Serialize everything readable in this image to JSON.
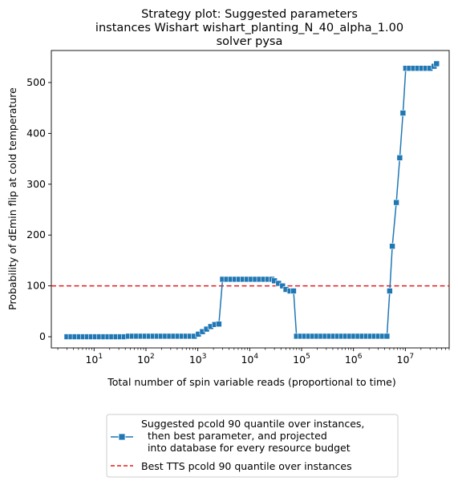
{
  "chart_data": {
    "type": "line",
    "title_lines": [
      "Strategy plot: Suggested parameters",
      "instances Wishart wishart_planting_N_40_alpha_1.00",
      "solver pysa"
    ],
    "xlabel": "Total number of spin variable reads (proportional to time)",
    "ylabel": "Probability of dEmin flip at cold temperature",
    "xscale": "log",
    "xlim": [
      1.5,
      70000000
    ],
    "ylim": [
      -22,
      563
    ],
    "y_ticks": [
      0,
      100,
      200,
      300,
      400,
      500
    ],
    "x_ticks": [
      {
        "value": 10,
        "label": "10",
        "exp": "1"
      },
      {
        "value": 100,
        "label": "10",
        "exp": "2"
      },
      {
        "value": 1000,
        "label": "10",
        "exp": "3"
      },
      {
        "value": 10000,
        "label": "10",
        "exp": "4"
      },
      {
        "value": 100000,
        "label": "10",
        "exp": "5"
      },
      {
        "value": 1000000,
        "label": "10",
        "exp": "6"
      },
      {
        "value": 10000000,
        "label": "10",
        "exp": "7"
      }
    ],
    "grid": false,
    "legend_placement": "below plot",
    "series": [
      {
        "name": "Suggested pcold 90 quantile over instances,\n  then best parameter, and projected\n  into database for every resource budget",
        "color": "#1f77b4",
        "marker": "square",
        "points": [
          [
            3,
            0
          ],
          [
            3.6,
            0
          ],
          [
            4.3,
            0
          ],
          [
            5.2,
            0
          ],
          [
            6.2,
            0
          ],
          [
            7.4,
            0
          ],
          [
            8.9,
            0
          ],
          [
            10.7,
            0
          ],
          [
            12.8,
            0
          ],
          [
            15.4,
            0
          ],
          [
            18.5,
            0
          ],
          [
            22,
            0
          ],
          [
            26.5,
            0
          ],
          [
            32,
            0
          ],
          [
            38,
            0
          ],
          [
            46,
            1
          ],
          [
            55,
            1
          ],
          [
            66,
            1
          ],
          [
            80,
            1
          ],
          [
            96,
            1
          ],
          [
            115,
            1
          ],
          [
            138,
            1
          ],
          [
            165,
            1
          ],
          [
            198,
            1
          ],
          [
            238,
            1
          ],
          [
            286,
            1
          ],
          [
            343,
            1
          ],
          [
            412,
            1
          ],
          [
            494,
            1
          ],
          [
            593,
            1
          ],
          [
            712,
            1
          ],
          [
            854,
            1
          ],
          [
            1025,
            5
          ],
          [
            1230,
            10
          ],
          [
            1476,
            15
          ],
          [
            1771,
            20
          ],
          [
            2125,
            24
          ],
          [
            2550,
            25
          ],
          [
            3000,
            113
          ],
          [
            3600,
            113
          ],
          [
            4320,
            113
          ],
          [
            5184,
            113
          ],
          [
            6221,
            113
          ],
          [
            7465,
            113
          ],
          [
            8958,
            113
          ],
          [
            10750,
            113
          ],
          [
            12900,
            113
          ],
          [
            15480,
            113
          ],
          [
            18576,
            113
          ],
          [
            22291,
            113
          ],
          [
            26749,
            113
          ],
          [
            30000,
            110
          ],
          [
            36000,
            105
          ],
          [
            43000,
            100
          ],
          [
            50000,
            93
          ],
          [
            60000,
            90
          ],
          [
            70000,
            90
          ],
          [
            80000,
            1
          ],
          [
            96000,
            1
          ],
          [
            115000,
            1
          ],
          [
            138000,
            1
          ],
          [
            166000,
            1
          ],
          [
            199000,
            1
          ],
          [
            239000,
            1
          ],
          [
            287000,
            1
          ],
          [
            344000,
            1
          ],
          [
            413000,
            1
          ],
          [
            495000,
            1
          ],
          [
            594000,
            1
          ],
          [
            713000,
            1
          ],
          [
            856000,
            1
          ],
          [
            1027000,
            1
          ],
          [
            1232000,
            1
          ],
          [
            1479000,
            1
          ],
          [
            1775000,
            1
          ],
          [
            2130000,
            1
          ],
          [
            2556000,
            1
          ],
          [
            3067000,
            1
          ],
          [
            3680000,
            1
          ],
          [
            4416000,
            1
          ],
          [
            5000000,
            90
          ],
          [
            5600000,
            178
          ],
          [
            6700000,
            264
          ],
          [
            7800000,
            352
          ],
          [
            9000000,
            440
          ],
          [
            10200000,
            528
          ],
          [
            12000000,
            528
          ],
          [
            14400000,
            528
          ],
          [
            17300000,
            528
          ],
          [
            20700000,
            528
          ],
          [
            24900000,
            528
          ],
          [
            29900000,
            528
          ],
          [
            35800000,
            532
          ],
          [
            40000000,
            537
          ]
        ]
      },
      {
        "name": "Best TTS pcold 90 quantile over instances",
        "color": "#e41a1c",
        "style": "dashed",
        "y": 100
      }
    ]
  }
}
